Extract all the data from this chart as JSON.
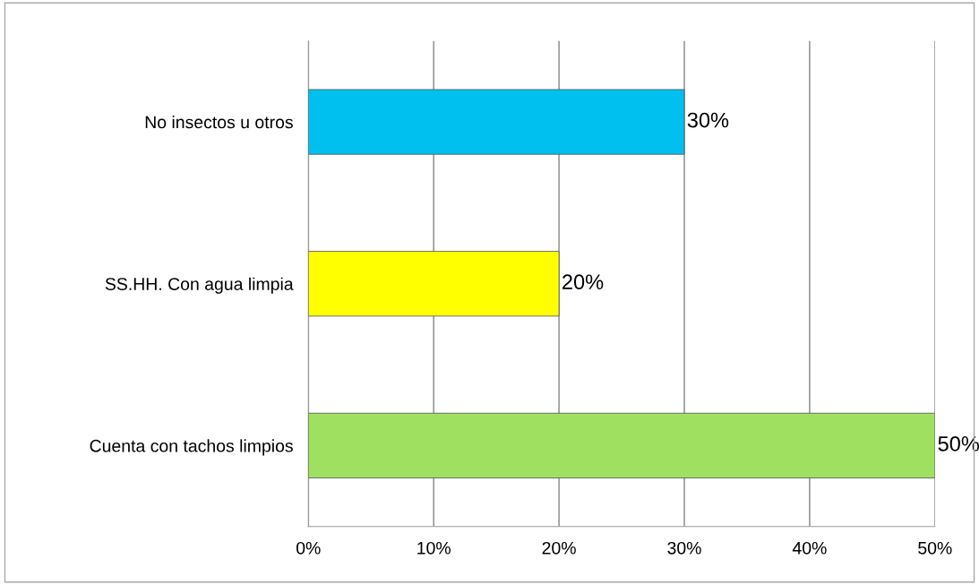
{
  "chart_data": {
    "type": "bar",
    "orientation": "horizontal",
    "categories": [
      "No insectos u otros",
      "SS.HH. Con agua limpia",
      "Cuenta con tachos limpios"
    ],
    "values": [
      30,
      20,
      50
    ],
    "colors": [
      "#00c0f0",
      "#ffff00",
      "#a0e060"
    ],
    "value_labels": [
      "30%",
      "20%",
      "50%"
    ],
    "xlim": [
      0,
      50
    ],
    "xticks": [
      {
        "value": 0,
        "label": "0%"
      },
      {
        "value": 10,
        "label": "10%"
      },
      {
        "value": 20,
        "label": "20%"
      },
      {
        "value": 30,
        "label": "30%"
      },
      {
        "value": 40,
        "label": "40%"
      },
      {
        "value": 50,
        "label": "50%"
      }
    ],
    "grid": "x",
    "legend": false
  }
}
